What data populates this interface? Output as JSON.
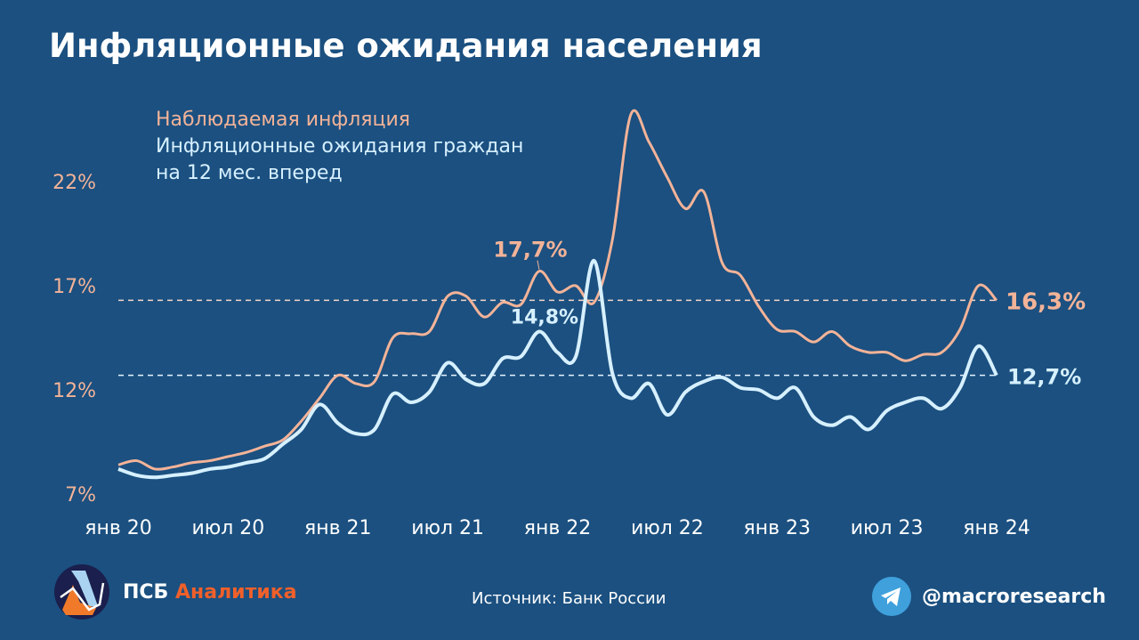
{
  "title": "Инфляционные ожидания населения",
  "legend": {
    "observed": "Наблюдаемая инфляция",
    "expected_line1": "Инфляционные ожидания граждан",
    "expected_line2": "на 12 мес. вперед"
  },
  "colors": {
    "background": "#1b5080",
    "observed": "#f3b398",
    "expected": "#d6f0ff"
  },
  "chart_data": {
    "type": "line",
    "title": "Инфляционные ожидания населения",
    "x": [
      "2020-01",
      "2020-02",
      "2020-03",
      "2020-04",
      "2020-05",
      "2020-06",
      "2020-07",
      "2020-08",
      "2020-09",
      "2020-10",
      "2020-11",
      "2020-12",
      "2021-01",
      "2021-02",
      "2021-03",
      "2021-04",
      "2021-05",
      "2021-06",
      "2021-07",
      "2021-08",
      "2021-09",
      "2021-10",
      "2021-11",
      "2021-12",
      "2022-01",
      "2022-02",
      "2022-03",
      "2022-04",
      "2022-05",
      "2022-06",
      "2022-07",
      "2022-08",
      "2022-09",
      "2022-10",
      "2022-11",
      "2022-12",
      "2023-01",
      "2023-02",
      "2023-03",
      "2023-04",
      "2023-05",
      "2023-06",
      "2023-07",
      "2023-08",
      "2023-09",
      "2023-10",
      "2023-11",
      "2023-12",
      "2024-01"
    ],
    "x_tick_labels": [
      "янв 20",
      "июл 20",
      "янв 21",
      "июл 21",
      "янв 22",
      "июл 22",
      "янв 23",
      "июл 23",
      "янв 24"
    ],
    "y_tick_labels": [
      "7%",
      "12%",
      "17%",
      "22%"
    ],
    "y_ticks": [
      7,
      12,
      17,
      22
    ],
    "ylim": [
      7,
      25.5
    ],
    "grid": false,
    "series": [
      {
        "name": "Наблюдаемая инфляция",
        "color": "#f3b398",
        "values": [
          8.4,
          8.6,
          8.2,
          8.3,
          8.5,
          8.6,
          8.8,
          9.0,
          9.3,
          9.6,
          10.5,
          11.6,
          12.7,
          12.3,
          12.4,
          14.5,
          14.7,
          14.8,
          16.5,
          16.5,
          15.5,
          16.2,
          16.1,
          17.7,
          16.7,
          17.0,
          16.2,
          19.2,
          25.2,
          23.9,
          22.2,
          20.7,
          21.5,
          18.1,
          17.5,
          16.0,
          14.9,
          14.8,
          14.3,
          14.8,
          14.1,
          13.8,
          13.8,
          13.4,
          13.7,
          13.8,
          14.9,
          17.0,
          16.3
        ]
      },
      {
        "name": "Инфляционные ожидания граждан на 12 мес. вперед",
        "color": "#d6f0ff",
        "values": [
          8.2,
          7.9,
          7.8,
          7.9,
          8.0,
          8.2,
          8.3,
          8.5,
          8.7,
          9.4,
          10.1,
          11.3,
          10.4,
          9.9,
          10.1,
          11.8,
          11.4,
          11.9,
          13.3,
          12.5,
          12.3,
          13.5,
          13.6,
          14.8,
          13.8,
          13.6,
          18.2,
          12.8,
          11.6,
          12.3,
          10.8,
          11.9,
          12.4,
          12.6,
          12.1,
          12.0,
          11.6,
          12.1,
          10.7,
          10.3,
          10.7,
          10.1,
          11.0,
          11.4,
          11.6,
          11.1,
          12.1,
          14.1,
          12.7
        ]
      }
    ],
    "reference_lines": [
      16.3,
      12.7
    ],
    "annotations": [
      {
        "text": "17,7%",
        "series": 0,
        "x": "2021-12"
      },
      {
        "text": "14,8%",
        "series": 1,
        "x": "2021-12"
      },
      {
        "text": "16,3%",
        "series": 0,
        "x": "2024-01"
      },
      {
        "text": "12,7%",
        "series": 1,
        "x": "2024-01"
      }
    ]
  },
  "footer": {
    "brand_psb": "ПСБ",
    "brand_analytics": "Аналитика",
    "source": "Источник: Банк России",
    "telegram_handle": "@macroresearch"
  }
}
